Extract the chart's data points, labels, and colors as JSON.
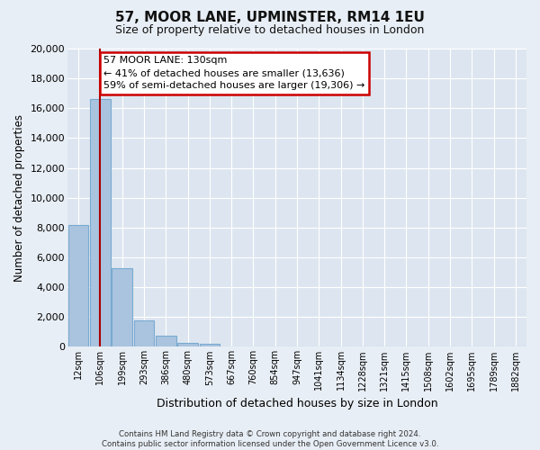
{
  "title": "57, MOOR LANE, UPMINSTER, RM14 1EU",
  "subtitle": "Size of property relative to detached houses in London",
  "xlabel": "Distribution of detached houses by size in London",
  "ylabel": "Number of detached properties",
  "bar_labels": [
    "12sqm",
    "106sqm",
    "199sqm",
    "293sqm",
    "386sqm",
    "480sqm",
    "573sqm",
    "667sqm",
    "760sqm",
    "854sqm",
    "947sqm",
    "1041sqm",
    "1134sqm",
    "1228sqm",
    "1321sqm",
    "1415sqm",
    "1508sqm",
    "1602sqm",
    "1695sqm",
    "1789sqm",
    "1882sqm"
  ],
  "bar_values": [
    8200,
    16600,
    5300,
    1800,
    750,
    280,
    220,
    0,
    0,
    0,
    0,
    0,
    0,
    0,
    0,
    0,
    0,
    0,
    0,
    0,
    0
  ],
  "bar_face_color": "#aac4e0",
  "bar_edge_color": "#7aaad0",
  "vline_color": "#aa0000",
  "ylim": [
    0,
    20000
  ],
  "yticks": [
    0,
    2000,
    4000,
    6000,
    8000,
    10000,
    12000,
    14000,
    16000,
    18000,
    20000
  ],
  "annotation_title": "57 MOOR LANE: 130sqm",
  "annotation_line1": "← 41% of detached houses are smaller (13,636)",
  "annotation_line2": "59% of semi-detached houses are larger (19,306) →",
  "annotation_box_color": "#ffffff",
  "annotation_box_edge": "#cc0000",
  "footer_line1": "Contains HM Land Registry data © Crown copyright and database right 2024.",
  "footer_line2": "Contains public sector information licensed under the Open Government Licence v3.0.",
  "background_color": "#e8eef5",
  "plot_bg_color": "#dde6f0",
  "grid_color": "#ffffff",
  "title_fontsize": 11,
  "subtitle_fontsize": 9
}
